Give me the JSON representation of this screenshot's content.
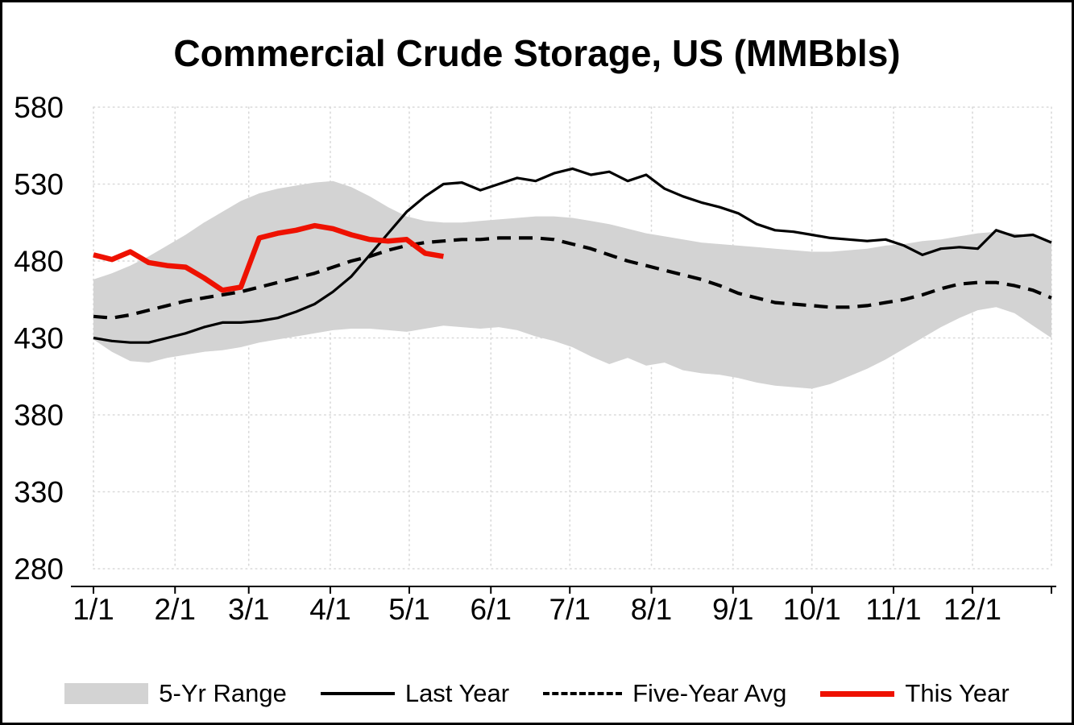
{
  "chart_data": {
    "type": "line",
    "title": "Commercial Crude Storage, US (MMBbls)",
    "xlabel": "",
    "ylabel": "",
    "ylim": [
      280,
      580
    ],
    "yticks": [
      280,
      330,
      380,
      430,
      480,
      530,
      580
    ],
    "x_domain_days": [
      1,
      365
    ],
    "x_ticks": [
      {
        "label": "1/1",
        "day": 1
      },
      {
        "label": "2/1",
        "day": 32
      },
      {
        "label": "3/1",
        "day": 60
      },
      {
        "label": "4/1",
        "day": 91
      },
      {
        "label": "5/1",
        "day": 121
      },
      {
        "label": "6/1",
        "day": 152
      },
      {
        "label": "7/1",
        "day": 182
      },
      {
        "label": "8/1",
        "day": 213
      },
      {
        "label": "9/1",
        "day": 244
      },
      {
        "label": "10/1",
        "day": 274
      },
      {
        "label": "11/1",
        "day": 305
      },
      {
        "label": "12/1",
        "day": 335
      }
    ],
    "grid": "dotted",
    "legend_position": "bottom",
    "colors": {
      "range": "#d3d3d3",
      "last_year": "#000000",
      "five_year_avg": "#000000",
      "this_year": "#ee1100",
      "gridline": "#d9d9d9",
      "axis": "#000000"
    },
    "series": {
      "days_weekly": [
        1,
        8,
        15,
        22,
        29,
        36,
        43,
        50,
        57,
        64,
        71,
        78,
        85,
        92,
        99,
        106,
        113,
        120,
        127,
        134,
        141,
        148,
        155,
        162,
        169,
        176,
        183,
        190,
        197,
        204,
        211,
        218,
        225,
        232,
        239,
        246,
        253,
        260,
        267,
        274,
        281,
        288,
        295,
        302,
        309,
        316,
        323,
        330,
        337,
        344,
        351,
        358,
        365
      ],
      "band_upper": [
        468,
        472,
        477,
        483,
        490,
        497,
        505,
        512,
        519,
        524,
        527,
        529,
        531,
        532,
        528,
        522,
        515,
        509,
        506,
        505,
        505,
        506,
        507,
        508,
        509,
        509,
        508,
        506,
        504,
        501,
        498,
        496,
        494,
        492,
        491,
        490,
        489,
        488,
        487,
        486,
        486,
        487,
        488,
        490,
        491,
        493,
        494,
        496,
        498,
        499,
        498,
        496,
        493
      ],
      "band_lower": [
        429,
        421,
        415,
        414,
        417,
        419,
        421,
        422,
        424,
        427,
        429,
        431,
        433,
        435,
        436,
        436,
        435,
        434,
        436,
        438,
        437,
        436,
        437,
        435,
        431,
        428,
        424,
        418,
        413,
        417,
        412,
        414,
        409,
        407,
        406,
        404,
        401,
        399,
        398,
        397,
        400,
        405,
        410,
        416,
        423,
        430,
        437,
        443,
        448,
        450,
        446,
        438,
        430
      ],
      "last_year": [
        430,
        428,
        427,
        427,
        430,
        433,
        437,
        440,
        440,
        441,
        443,
        447,
        452,
        460,
        470,
        484,
        498,
        512,
        522,
        530,
        531,
        526,
        530,
        534,
        532,
        537,
        540,
        536,
        538,
        532,
        536,
        527,
        522,
        518,
        515,
        511,
        504,
        500,
        499,
        497,
        495,
        494,
        493,
        494,
        490,
        484,
        488,
        489,
        488,
        500,
        496,
        497,
        492
      ],
      "five_year_avg": [
        444,
        443,
        445,
        448,
        451,
        454,
        456,
        458,
        460,
        463,
        466,
        469,
        472,
        476,
        480,
        483,
        487,
        490,
        492,
        493,
        494,
        494,
        495,
        495,
        495,
        494,
        491,
        488,
        484,
        480,
        477,
        474,
        471,
        468,
        464,
        459,
        456,
        453,
        452,
        451,
        450,
        450,
        451,
        453,
        455,
        458,
        462,
        465,
        466,
        466,
        464,
        461,
        456
      ],
      "this_year_days": [
        1,
        8,
        15,
        22,
        29,
        36,
        43,
        50,
        57,
        64,
        71,
        78,
        85,
        92,
        99,
        106,
        113,
        120,
        127,
        134
      ],
      "this_year": [
        484,
        481,
        486,
        479,
        477,
        476,
        469,
        461,
        463,
        495,
        498,
        500,
        503,
        501,
        497,
        494,
        493,
        494,
        485,
        483
      ]
    },
    "legend": [
      {
        "label": "5-Yr Range",
        "swatch": "area",
        "color": "#d3d3d3"
      },
      {
        "label": "Last Year",
        "swatch": "solid-line",
        "color": "#000000"
      },
      {
        "label": "Five-Year Avg",
        "swatch": "dashed-line",
        "color": "#000000"
      },
      {
        "label": "This Year",
        "swatch": "thick-line",
        "color": "#ee1100"
      }
    ]
  }
}
